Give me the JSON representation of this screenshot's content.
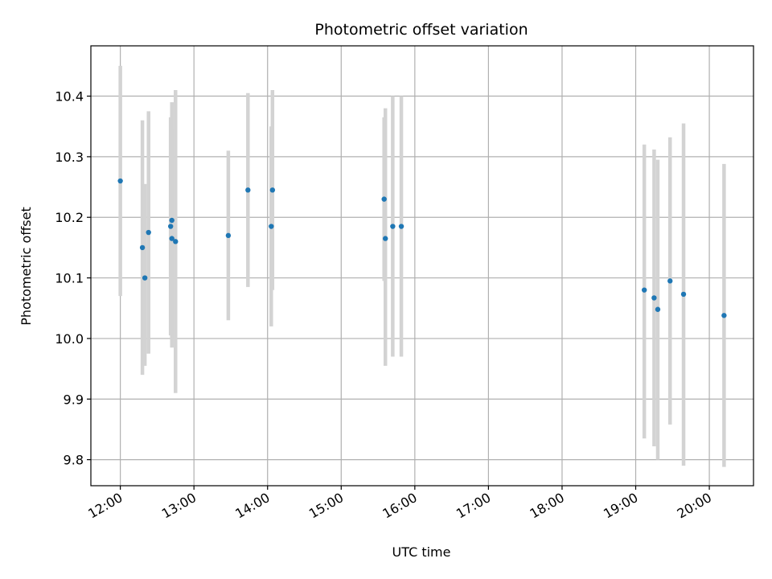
{
  "chart_data": {
    "type": "scatter",
    "title": "Photometric offset variation",
    "xlabel": "UTC time",
    "ylabel": "Photometric offset",
    "xlim": [
      "11:36",
      "20:36"
    ],
    "ylim": [
      9.757,
      10.483
    ],
    "xticks": [
      "12:00",
      "13:00",
      "14:00",
      "15:00",
      "16:00",
      "17:00",
      "18:00",
      "19:00",
      "20:00"
    ],
    "yticks": [
      "9.8",
      "9.9",
      "10.0",
      "10.1",
      "10.2",
      "10.3",
      "10.4"
    ],
    "grid": true,
    "colors": {
      "point": "#1f77b4",
      "errorbar": "#d3d3d3"
    },
    "points": [
      {
        "x": "12:00",
        "y": 10.26,
        "ylow": 10.07,
        "yhigh": 10.45
      },
      {
        "x": "12:18",
        "y": 10.15,
        "ylow": 9.94,
        "yhigh": 10.36
      },
      {
        "x": "12:20",
        "y": 10.1,
        "ylow": 9.955,
        "yhigh": 10.255
      },
      {
        "x": "12:23",
        "y": 10.175,
        "ylow": 9.975,
        "yhigh": 10.375
      },
      {
        "x": "12:41",
        "y": 10.185,
        "ylow": 10.005,
        "yhigh": 10.365
      },
      {
        "x": "12:42",
        "y": 10.195,
        "ylow": 10.0,
        "yhigh": 10.39
      },
      {
        "x": "12:42",
        "y": 10.165,
        "ylow": 9.985,
        "yhigh": 10.345
      },
      {
        "x": "12:45",
        "y": 10.16,
        "ylow": 9.91,
        "yhigh": 10.41
      },
      {
        "x": "13:28",
        "y": 10.17,
        "ylow": 10.03,
        "yhigh": 10.31
      },
      {
        "x": "13:44",
        "y": 10.245,
        "ylow": 10.085,
        "yhigh": 10.405
      },
      {
        "x": "14:03",
        "y": 10.185,
        "ylow": 10.02,
        "yhigh": 10.35
      },
      {
        "x": "14:04",
        "y": 10.245,
        "ylow": 10.08,
        "yhigh": 10.41
      },
      {
        "x": "15:35",
        "y": 10.23,
        "ylow": 10.095,
        "yhigh": 10.365
      },
      {
        "x": "15:36",
        "y": 10.165,
        "ylow": 9.955,
        "yhigh": 10.38
      },
      {
        "x": "15:42",
        "y": 10.185,
        "ylow": 9.97,
        "yhigh": 10.4
      },
      {
        "x": "15:49",
        "y": 10.185,
        "ylow": 9.97,
        "yhigh": 10.4
      },
      {
        "x": "19:07",
        "y": 10.08,
        "ylow": 9.835,
        "yhigh": 10.32
      },
      {
        "x": "19:15",
        "y": 10.067,
        "ylow": 9.822,
        "yhigh": 10.312
      },
      {
        "x": "19:18",
        "y": 10.048,
        "ylow": 9.8,
        "yhigh": 10.295
      },
      {
        "x": "19:28",
        "y": 10.095,
        "ylow": 9.858,
        "yhigh": 10.332
      },
      {
        "x": "19:39",
        "y": 10.073,
        "ylow": 9.79,
        "yhigh": 10.355
      },
      {
        "x": "20:12",
        "y": 10.038,
        "ylow": 9.788,
        "yhigh": 10.288
      }
    ]
  }
}
